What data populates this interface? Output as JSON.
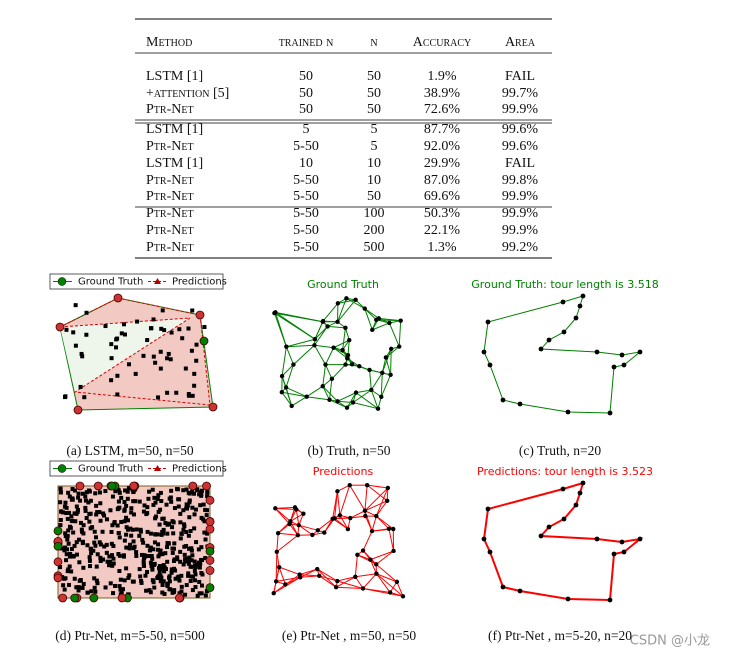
{
  "table": {
    "headers": [
      "Method",
      "trained n",
      "n",
      "Accuracy",
      "Area"
    ],
    "rows": [
      [
        "LSTM [1]",
        "50",
        "50",
        "1.9%",
        "FAIL"
      ],
      [
        "+attention [5]",
        "50",
        "50",
        "38.9%",
        "99.7%"
      ],
      [
        "Ptr-Net",
        "50",
        "50",
        "72.6%",
        "99.9%"
      ],
      [
        "LSTM [1]",
        "5",
        "5",
        "87.7%",
        "99.6%"
      ],
      [
        "Ptr-Net",
        "5-50",
        "5",
        "92.0%",
        "99.6%"
      ],
      [
        "LSTM [1]",
        "10",
        "10",
        "29.9%",
        "FAIL"
      ],
      [
        "Ptr-Net",
        "5-50",
        "10",
        "87.0%",
        "99.8%"
      ],
      [
        "Ptr-Net",
        "5-50",
        "50",
        "69.6%",
        "99.9%"
      ],
      [
        "Ptr-Net",
        "5-50",
        "100",
        "50.3%",
        "99.9%"
      ],
      [
        "Ptr-Net",
        "5-50",
        "200",
        "22.1%",
        "99.9%"
      ],
      [
        "Ptr-Net",
        "5-50",
        "500",
        "1.3%",
        "99.2%"
      ]
    ]
  },
  "figures": [
    {
      "legend": [
        "Ground Truth",
        "Predictions"
      ],
      "caption": "(a) LSTM, m=50, n=50"
    },
    {
      "title": "Ground Truth",
      "caption": "(b) Truth, n=50"
    },
    {
      "title": "Ground Truth: tour length is 3.518",
      "caption": "(c) Truth, n=20"
    },
    {
      "legend": [
        "Ground Truth",
        "Predictions"
      ],
      "caption": "(d) Ptr-Net, m=5-50, n=500"
    },
    {
      "title": "Predictions",
      "caption": "(e) Ptr-Net , m=50, n=50"
    },
    {
      "title": "Predictions: tour length is 3.523",
      "caption": "(f) Ptr-Net , m=5-20, n=20"
    }
  ],
  "watermark": "CSDN @小龙"
}
